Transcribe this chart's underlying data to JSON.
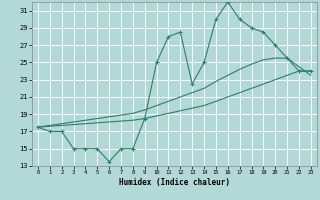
{
  "xlabel": "Humidex (Indice chaleur)",
  "background_color": "#b2d8d8",
  "grid_color": "#ffffff",
  "line_color": "#2e7d6e",
  "x_data": [
    0,
    1,
    2,
    3,
    4,
    5,
    6,
    7,
    8,
    9,
    10,
    11,
    12,
    13,
    14,
    15,
    16,
    17,
    18,
    19,
    20,
    21,
    22,
    23
  ],
  "y_main": [
    17.5,
    17.0,
    17.0,
    15.0,
    15.0,
    15.0,
    13.5,
    15.0,
    15.0,
    18.5,
    25.0,
    28.0,
    28.5,
    22.5,
    25.0,
    30.0,
    32.0,
    30.0,
    29.0,
    28.5,
    27.0,
    25.5,
    24.0,
    24.0
  ],
  "y_line1": [
    17.5,
    17.7,
    17.9,
    18.1,
    18.3,
    18.5,
    18.7,
    18.9,
    19.1,
    19.5,
    20.0,
    20.5,
    21.0,
    21.5,
    22.0,
    22.8,
    23.5,
    24.2,
    24.8,
    25.3,
    25.5,
    25.5,
    24.5,
    23.5
  ],
  "y_line2": [
    17.5,
    17.6,
    17.7,
    17.8,
    17.9,
    18.0,
    18.1,
    18.2,
    18.3,
    18.5,
    18.8,
    19.1,
    19.4,
    19.7,
    20.0,
    20.5,
    21.0,
    21.5,
    22.0,
    22.5,
    23.0,
    23.5,
    24.0,
    24.0
  ],
  "ylim": [
    13,
    32
  ],
  "xlim": [
    -0.5,
    23.5
  ],
  "yticks": [
    13,
    15,
    17,
    19,
    21,
    23,
    25,
    27,
    29,
    31
  ],
  "xticks": [
    0,
    1,
    2,
    3,
    4,
    5,
    6,
    7,
    8,
    9,
    10,
    11,
    12,
    13,
    14,
    15,
    16,
    17,
    18,
    19,
    20,
    21,
    22,
    23
  ]
}
